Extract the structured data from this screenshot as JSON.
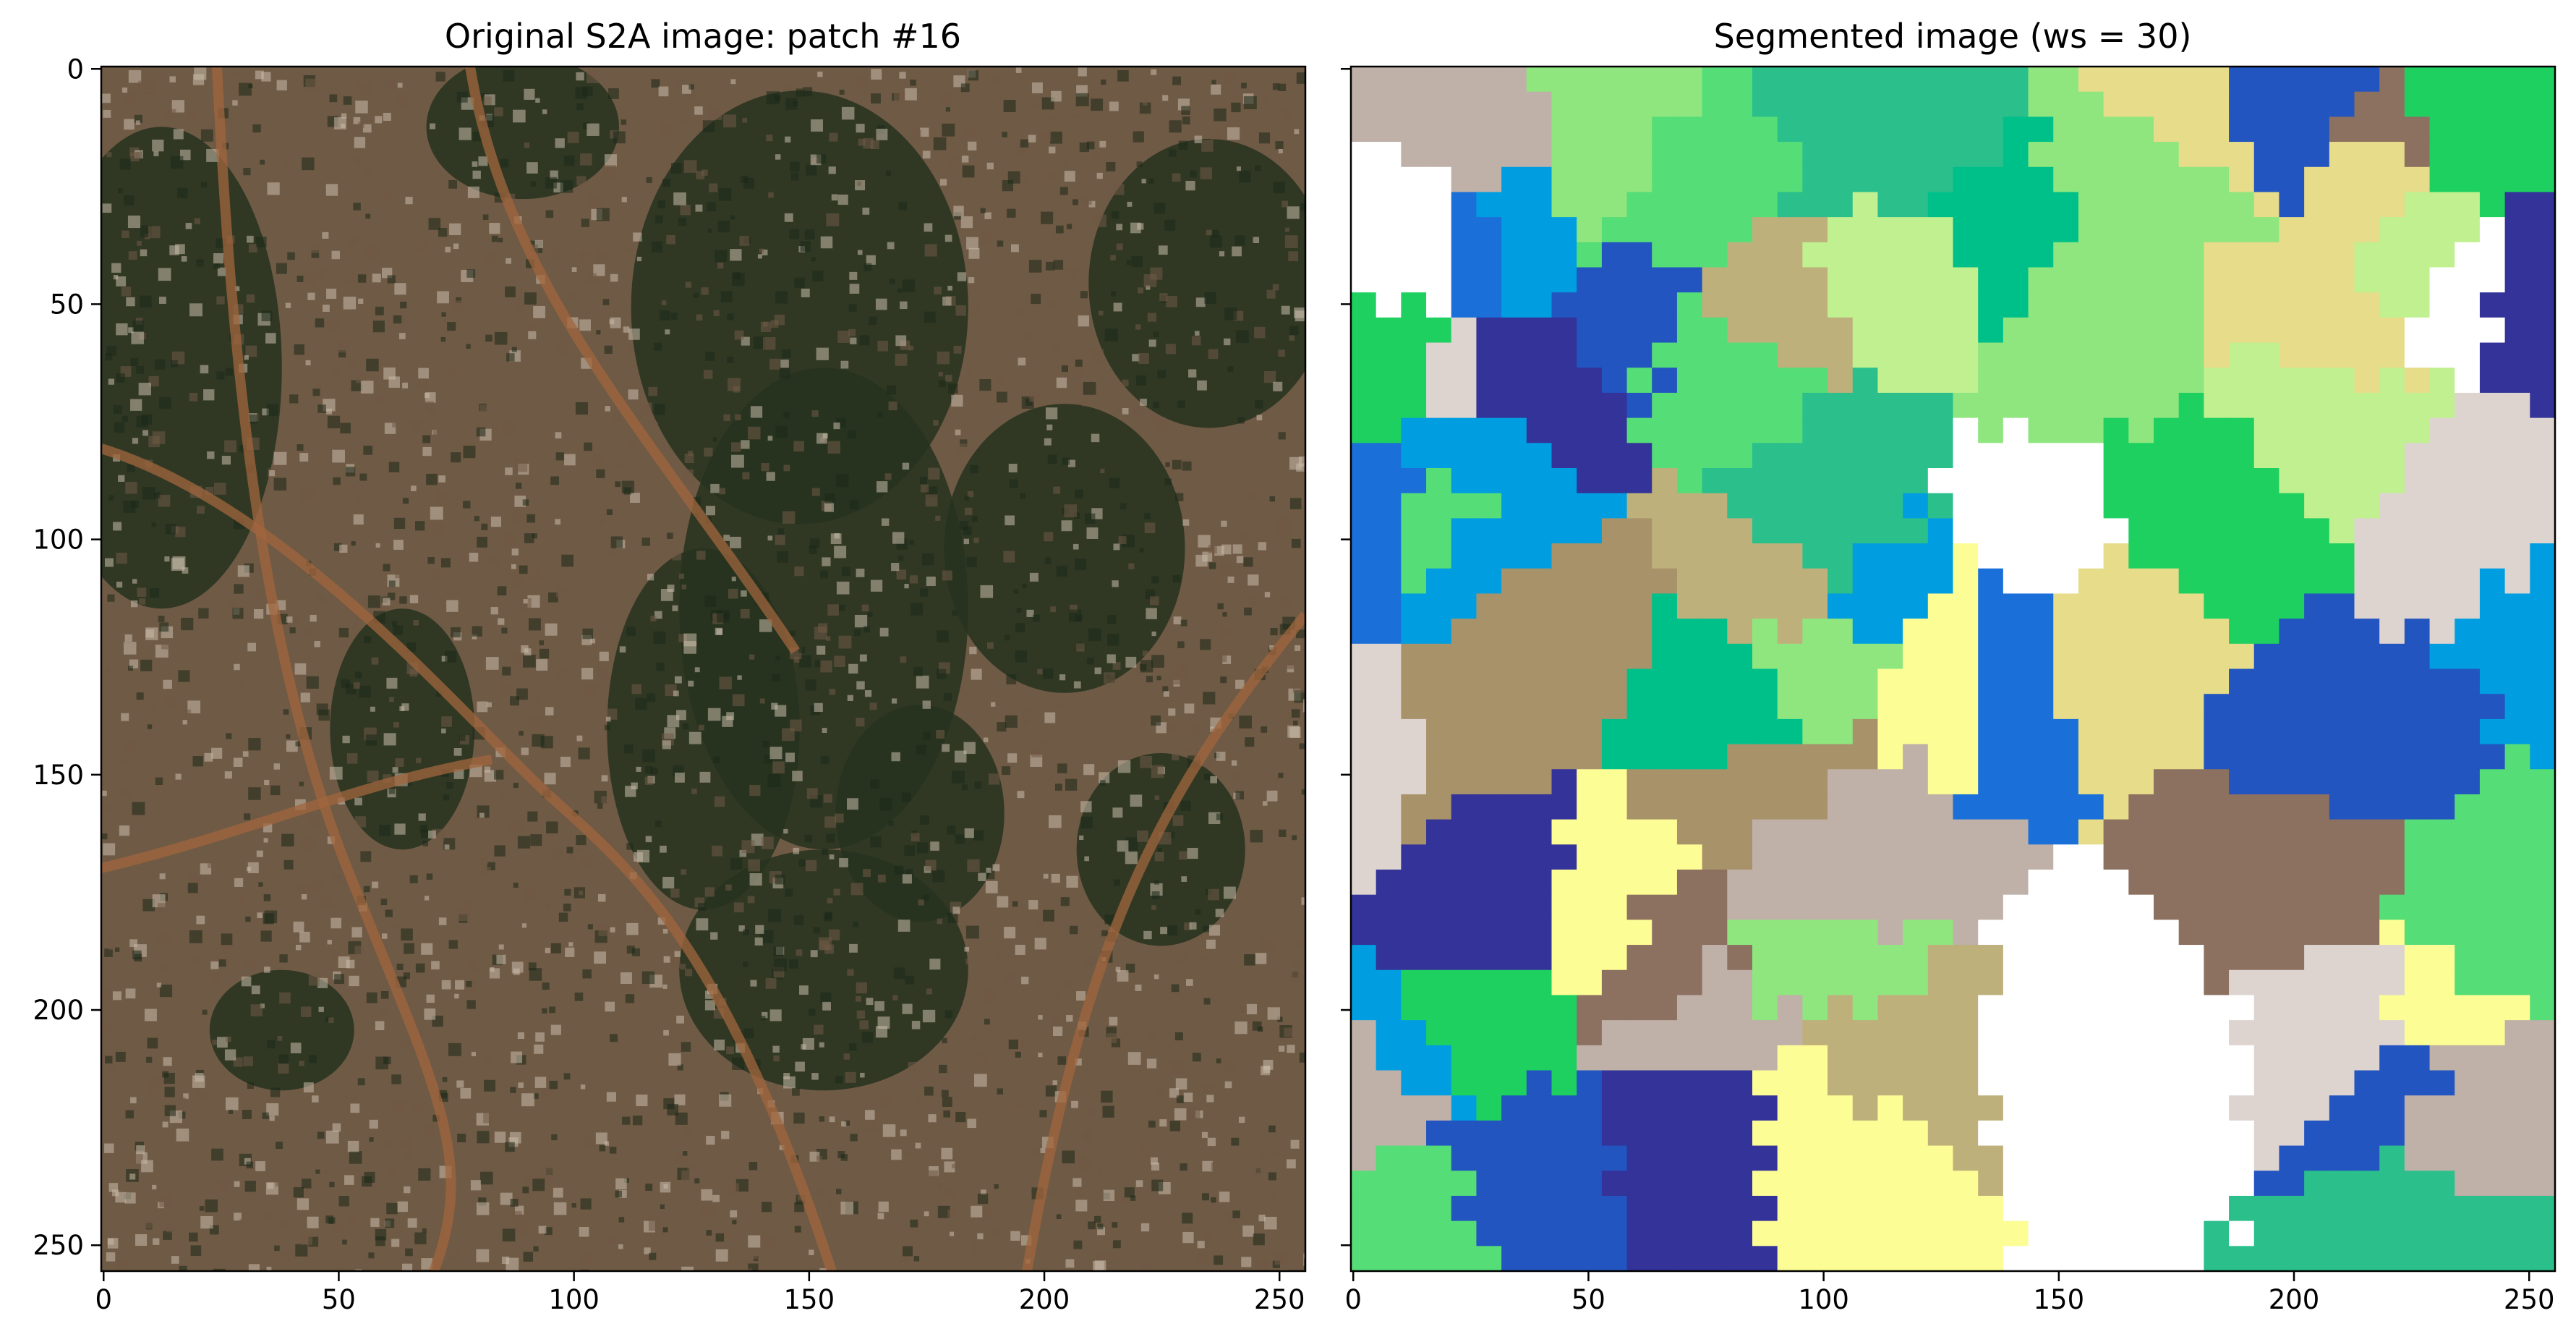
{
  "figure": {
    "panels": [
      {
        "title": "Original S2A image: patch #16",
        "x_ticks": [
          "0",
          "50",
          "100",
          "150",
          "200",
          "250"
        ],
        "y_ticks": [
          "0",
          "50",
          "100",
          "150",
          "200",
          "250"
        ],
        "x_range": [
          0,
          256
        ],
        "y_range": [
          0,
          256
        ],
        "y_tick_labels_shown": true,
        "content": "satellite-rgb",
        "colors": {
          "vegetation": "#26331f",
          "vegetation_dark": "#1c2817",
          "settlement": "#6f5a45",
          "road": "#a0663e",
          "bright_speck": "#c9bcaa"
        }
      },
      {
        "title": "Segmented image (ws = 30)",
        "x_ticks": [
          "0",
          "50",
          "100",
          "150",
          "200",
          "250"
        ],
        "y_ticks": [
          "0",
          "50",
          "100",
          "150",
          "200",
          "250"
        ],
        "x_range": [
          0,
          256
        ],
        "y_range": [
          0,
          256
        ],
        "y_tick_labels_shown": false,
        "content": "segmentation-map",
        "colormap": "terrain",
        "segment_colors": [
          "#ffffff",
          "#2bbf8c",
          "#00c08a",
          "#8fe67f",
          "#c0f090",
          "#fdfd96",
          "#e6dc8a",
          "#beb07a",
          "#a8926a",
          "#8c7060",
          "#bfb0a8",
          "#ddd4d0",
          "#009ee0",
          "#1a70d8",
          "#2255c0",
          "#333399",
          "#55dd77",
          "#1ed060"
        ]
      }
    ]
  }
}
